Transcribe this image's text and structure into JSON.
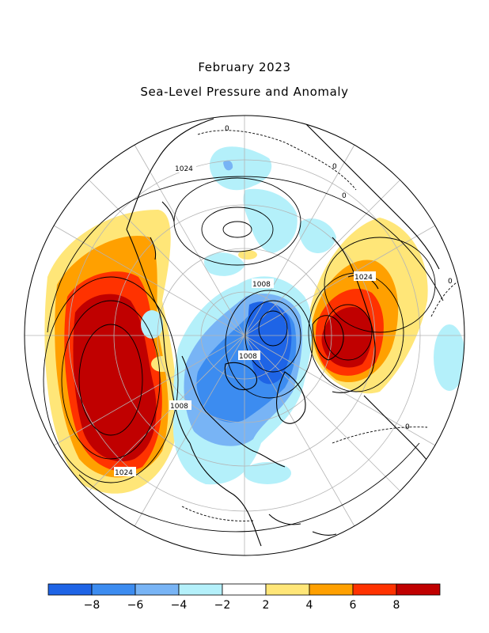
{
  "title": "February 2023",
  "subtitle": "Sea-Level Pressure and Anomaly",
  "contour_labels": [
    "1024",
    "1008",
    "1008",
    "1008",
    "1024",
    "1024",
    "0",
    "0",
    "0",
    "0",
    "0"
  ],
  "colorbar": {
    "ticks": [
      "-8",
      "-6",
      "-4",
      "-2",
      "2",
      "4",
      "6",
      "8"
    ],
    "colors": [
      "#1e64e6",
      "#3c8cf0",
      "#78b4f5",
      "#b4f0fa",
      "#ffffff",
      "#ffe678",
      "#ffa000",
      "#ff3200",
      "#c00000"
    ]
  },
  "colors": {
    "land": "#000000",
    "graticule": "#b4b4b4",
    "contour": "#000000"
  }
}
